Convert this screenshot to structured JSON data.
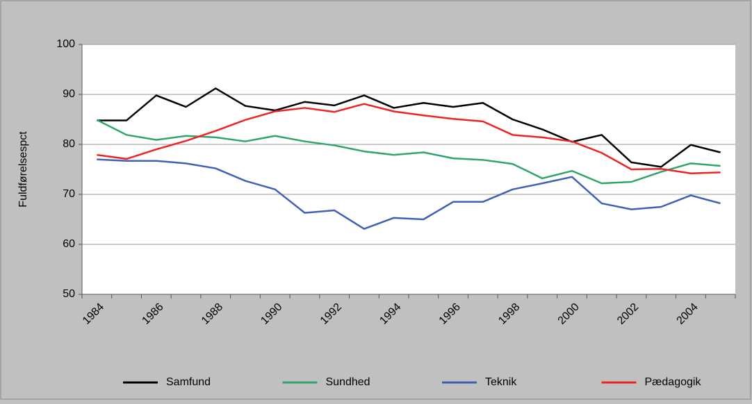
{
  "chart_data": {
    "type": "line",
    "ylabel": "Fuldførelsespct",
    "categories": [
      "1984",
      null,
      "1986",
      null,
      "1988",
      null,
      "1990",
      null,
      "1992",
      null,
      "1994",
      null,
      "1996",
      null,
      "1998",
      null,
      "2000",
      null,
      "2002",
      null,
      "2004",
      null
    ],
    "series": [
      {
        "name": "Samfund",
        "color": "#000000",
        "values": [
          84.8,
          84.8,
          89.8,
          87.5,
          91.2,
          87.7,
          86.8,
          88.5,
          87.8,
          89.8,
          87.3,
          88.3,
          87.5,
          88.3,
          85.0,
          83.0,
          80.5,
          81.9,
          76.4,
          75.5,
          79.9,
          78.4
        ]
      },
      {
        "name": "Sundhed",
        "color": "#2fa56c",
        "values": [
          84.9,
          81.9,
          80.9,
          81.7,
          81.4,
          80.6,
          81.7,
          80.6,
          79.8,
          78.6,
          77.9,
          78.4,
          77.2,
          76.9,
          76.1,
          73.2,
          74.7,
          72.2,
          72.5,
          74.5,
          76.2,
          75.7
        ]
      },
      {
        "name": "Teknik",
        "color": "#4060b4",
        "values": [
          77.0,
          76.7,
          76.7,
          76.2,
          75.2,
          72.7,
          71.0,
          66.3,
          66.8,
          63.1,
          65.3,
          65.0,
          68.5,
          68.5,
          71.0,
          72.2,
          73.5,
          68.2,
          67.0,
          67.5,
          69.8,
          68.2
        ]
      },
      {
        "name": "Pædagogik",
        "color": "#ee2424",
        "values": [
          77.9,
          77.1,
          79.0,
          80.7,
          82.7,
          84.9,
          86.6,
          87.3,
          86.5,
          88.1,
          86.6,
          85.8,
          85.1,
          84.6,
          81.9,
          81.4,
          80.6,
          78.3,
          75.0,
          75.1,
          74.2,
          74.4
        ]
      }
    ],
    "ylim": [
      50,
      100
    ],
    "yticks": [
      50,
      60,
      70,
      80,
      90,
      100
    ],
    "grid": true,
    "legend": "bottom"
  }
}
